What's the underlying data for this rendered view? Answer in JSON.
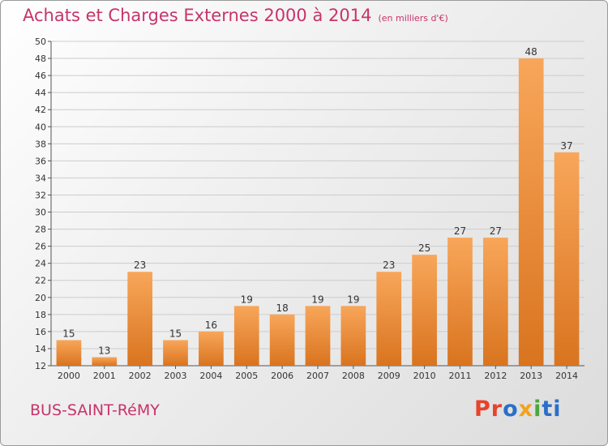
{
  "header": {
    "title": "Achats et Charges Externes 2000 à 2014",
    "subtitle": "(en milliers d'€)"
  },
  "footer": {
    "commune": "BUS-SAINT-RéMY",
    "logo": [
      "Pr",
      "o",
      "x",
      "i",
      "ti"
    ]
  },
  "colors": {
    "bar_top": "#f8a65a",
    "bar_bottom": "#d9741f",
    "title": "#c8336a",
    "grid": "#cccccc"
  },
  "chart_data": {
    "type": "bar",
    "title": "Achats et Charges Externes 2000 à 2014",
    "subtitle": "(en milliers d'€)",
    "xlabel": "",
    "ylabel": "",
    "categories": [
      "2000",
      "2001",
      "2002",
      "2003",
      "2004",
      "2005",
      "2006",
      "2007",
      "2008",
      "2009",
      "2010",
      "2011",
      "2012",
      "2013",
      "2014"
    ],
    "values": [
      15,
      13,
      23,
      15,
      16,
      19,
      18,
      19,
      19,
      23,
      25,
      27,
      27,
      48,
      37
    ],
    "ylim": [
      12,
      50
    ],
    "yticks": [
      12,
      14,
      16,
      18,
      20,
      22,
      24,
      26,
      28,
      30,
      32,
      34,
      36,
      38,
      40,
      42,
      44,
      46,
      48,
      50
    ],
    "grid": true,
    "legend": "none"
  }
}
